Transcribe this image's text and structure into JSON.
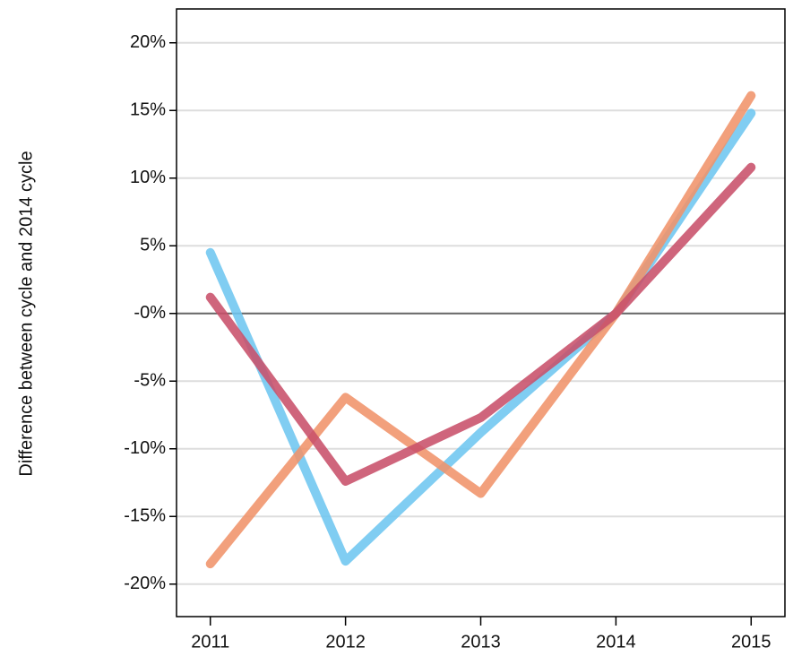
{
  "chart_data": {
    "type": "line",
    "y_label": "Difference between cycle and 2014 cycle",
    "x": [
      2011,
      2012,
      2013,
      2014,
      2015
    ],
    "xlim": [
      2010.75,
      2015.25
    ],
    "xticks": [
      2011,
      2012,
      2013,
      2014,
      2015
    ],
    "ylim": [
      -22.4,
      22.5
    ],
    "yticks": [
      {
        "value": -20,
        "label": "-20%"
      },
      {
        "value": -15,
        "label": "-15%"
      },
      {
        "value": -10,
        "label": "-10%"
      },
      {
        "value": -5,
        "label": "-5%"
      },
      {
        "value": 0,
        "label": "-0%"
      },
      {
        "value": 5,
        "label": "5%"
      },
      {
        "value": 10,
        "label": "10%"
      },
      {
        "value": 15,
        "label": "15%"
      },
      {
        "value": 20,
        "label": "20%"
      }
    ],
    "grid": true,
    "zero_line": true,
    "series": [
      {
        "color": "#6ec6f0",
        "values": [
          4.5,
          -18.3,
          -8.8,
          0,
          14.8
        ]
      },
      {
        "color": "#f0936a",
        "values": [
          -18.5,
          -6.2,
          -13.3,
          0,
          16.1
        ]
      },
      {
        "color": "#c8506a",
        "values": [
          1.2,
          -12.4,
          -7.7,
          0,
          10.8
        ]
      }
    ]
  }
}
